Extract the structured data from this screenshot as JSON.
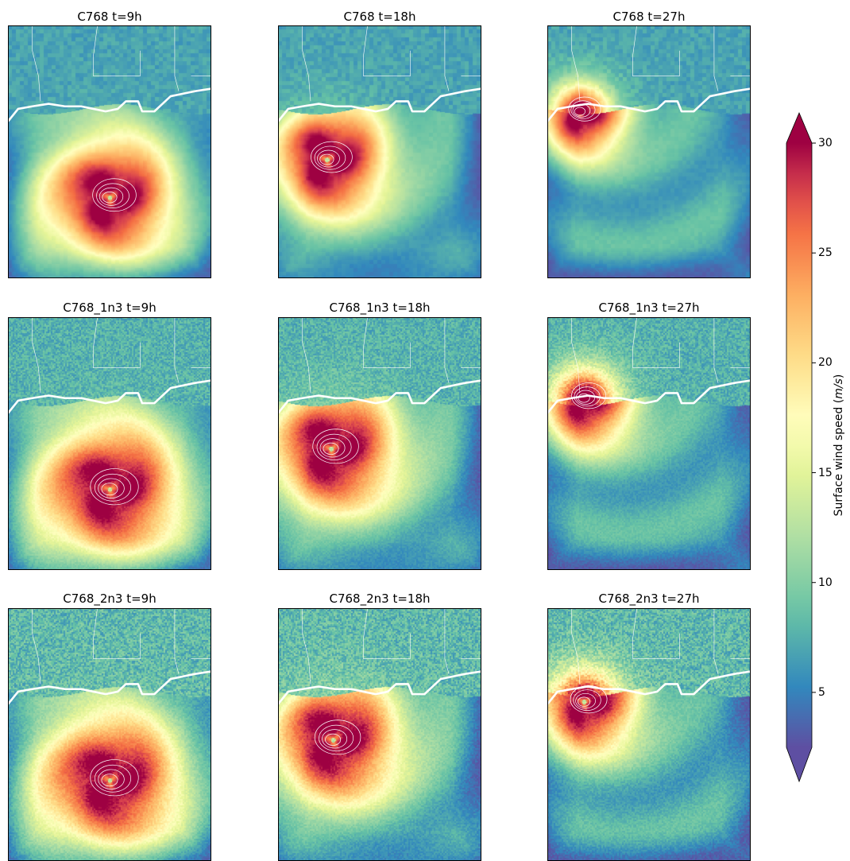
{
  "panels": [
    {
      "title": "C768 t=9h",
      "model": "C768",
      "hour": 9,
      "eye": [
        0.5,
        0.68
      ],
      "size": 0.95,
      "texture": 0.35
    },
    {
      "title": "C768 t=18h",
      "model": "C768",
      "hour": 18,
      "eye": [
        0.24,
        0.53
      ],
      "size": 0.9,
      "texture": 0.35
    },
    {
      "title": "C768 t=27h",
      "model": "C768",
      "hour": 27,
      "eye": [
        0.16,
        0.34
      ],
      "size": 0.7,
      "texture": 0.35
    },
    {
      "title": "C768_1n3 t=9h",
      "model": "C768_1n3",
      "hour": 9,
      "eye": [
        0.5,
        0.68
      ],
      "size": 1.05,
      "texture": 0.65
    },
    {
      "title": "C768_1n3 t=18h",
      "model": "C768_1n3",
      "hour": 18,
      "eye": [
        0.26,
        0.52
      ],
      "size": 1.0,
      "texture": 0.65
    },
    {
      "title": "C768_1n3 t=27h",
      "model": "C768_1n3",
      "hour": 27,
      "eye": [
        0.18,
        0.32
      ],
      "size": 0.75,
      "texture": 0.65
    },
    {
      "title": "C768_2n3 t=9h",
      "model": "C768_2n3",
      "hour": 9,
      "eye": [
        0.5,
        0.68
      ],
      "size": 1.05,
      "texture": 0.85
    },
    {
      "title": "C768_2n3 t=18h",
      "model": "C768_2n3",
      "hour": 18,
      "eye": [
        0.27,
        0.52
      ],
      "size": 1.0,
      "texture": 0.85
    },
    {
      "title": "C768_2n3 t=27h",
      "model": "C768_2n3",
      "hour": 27,
      "eye": [
        0.18,
        0.37
      ],
      "size": 0.8,
      "texture": 0.85
    }
  ],
  "colorbar": {
    "label": "Surface wind speed (m/s)",
    "label_text": "Surface wind speed (",
    "label_unit": "m/s",
    "label_close": ")",
    "min": 2.5,
    "max": 30,
    "ticks": [
      "5",
      "10",
      "15",
      "20",
      "25",
      "30"
    ],
    "extend": "both",
    "colormap": "Spectral_r"
  },
  "colors": {
    "low": "#5e4fa2",
    "mid": "#ffffbf",
    "high": "#9e0142",
    "coastline": "#ffffff"
  }
}
